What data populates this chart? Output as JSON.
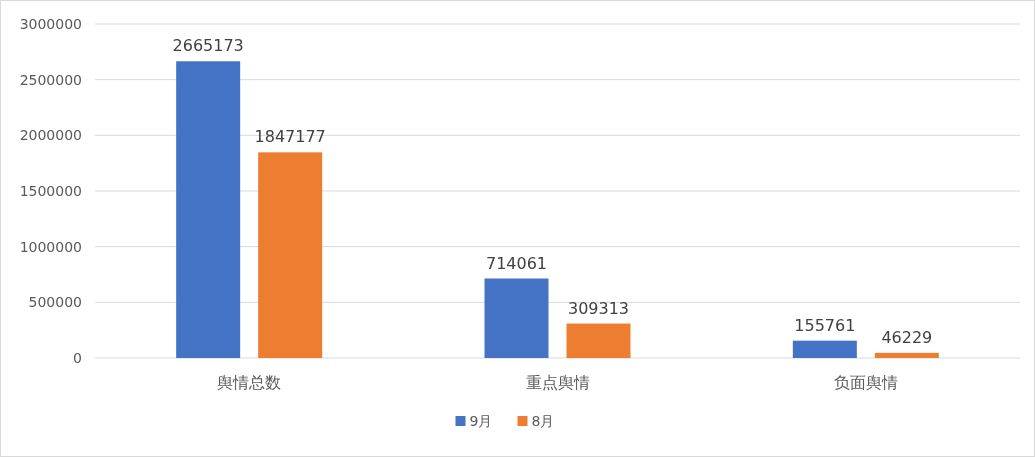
{
  "chart_data": {
    "type": "bar",
    "categories": [
      "舆情总数",
      "重点舆情",
      "负面舆情"
    ],
    "series": [
      {
        "name": "9月",
        "color": "#4472c4",
        "values": [
          2665173,
          714061,
          155761
        ]
      },
      {
        "name": "8月",
        "color": "#ed7d31",
        "values": [
          1847177,
          309313,
          46229
        ]
      }
    ],
    "ylim": [
      0,
      3000000
    ],
    "yticks": [
      0,
      500000,
      1000000,
      1500000,
      2000000,
      2500000,
      3000000
    ],
    "grid": "y",
    "legend": "bottom",
    "data_labels": true
  }
}
